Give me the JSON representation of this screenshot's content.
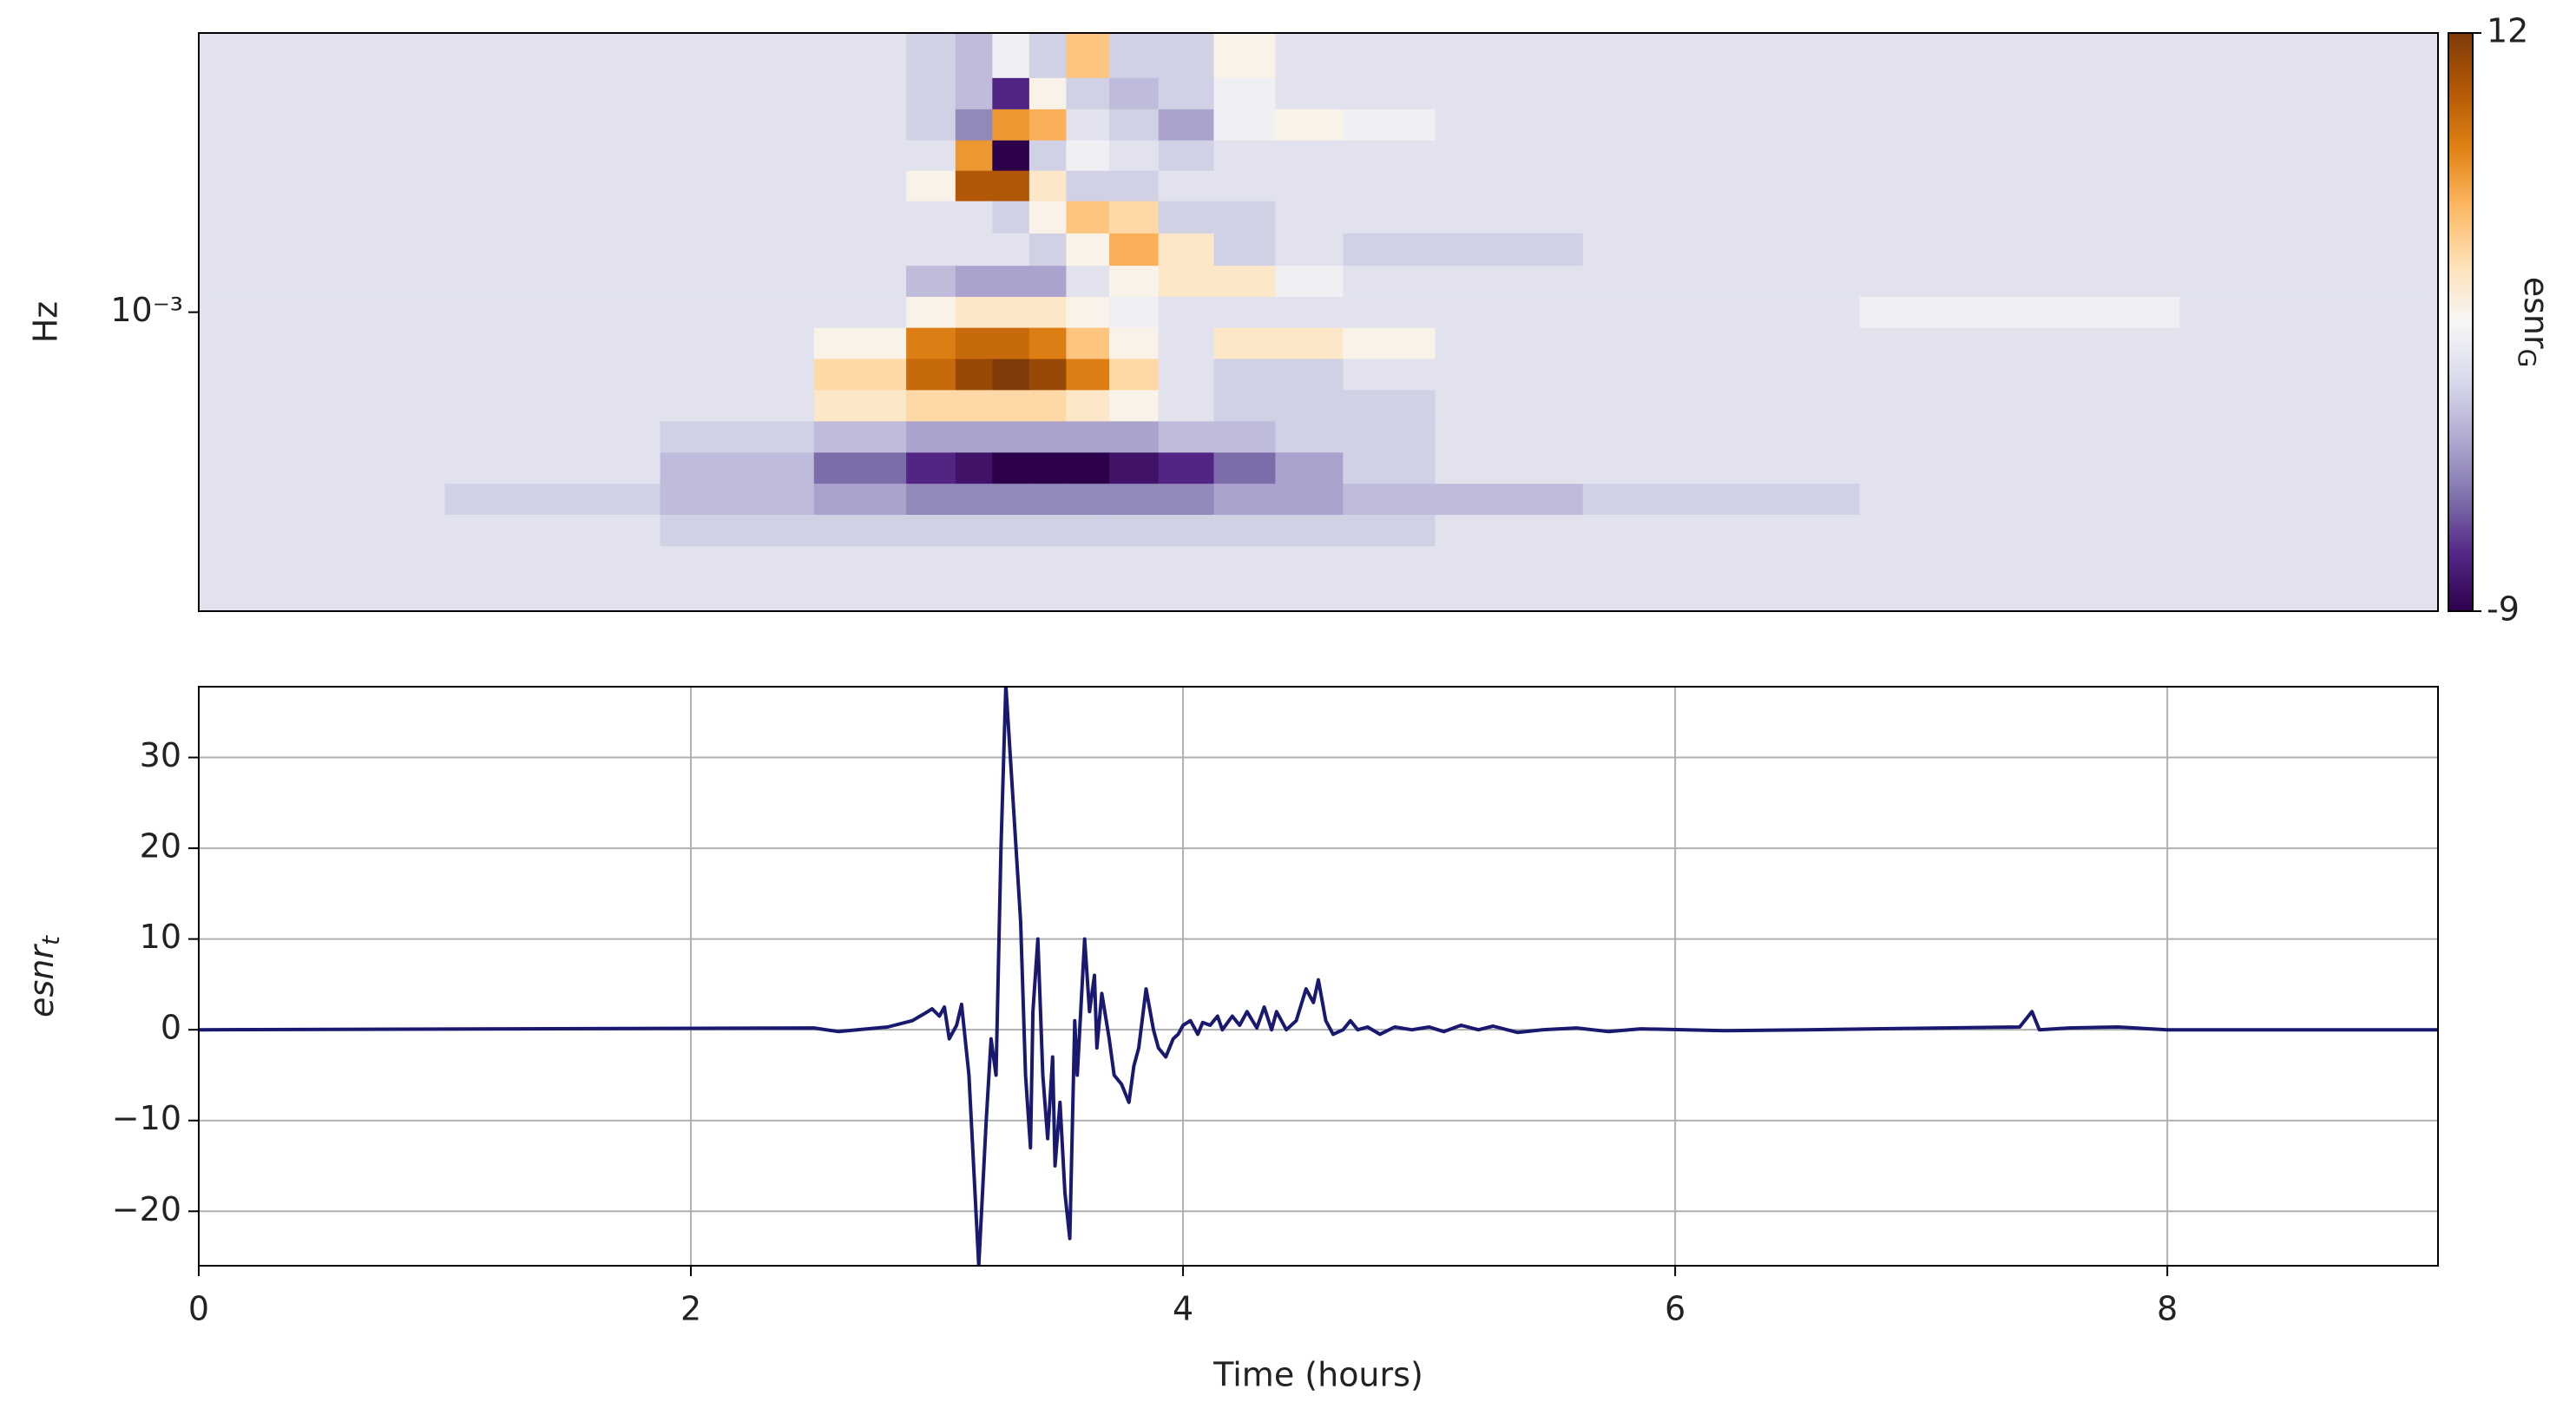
{
  "chart_data": [
    {
      "type": "heatmap",
      "y_label": "Hz",
      "yscale": "log",
      "xlim": [
        0,
        9.1
      ],
      "ylim": [
        0.000114,
        0.0076
      ],
      "yticks": [
        {
          "value": 0.001,
          "label": "10⁻³"
        }
      ],
      "x": [
        0.5,
        1.5,
        2.25,
        2.75,
        3.0,
        3.15,
        3.3,
        3.45,
        3.6,
        3.8,
        4.0,
        4.25,
        4.5,
        4.8,
        5.25,
        6,
        7.5,
        8.6
      ],
      "y": [
        0.00614,
        0.00489,
        0.0039,
        0.00311,
        0.00251,
        0.002,
        0.00157,
        0.00125,
        0.001,
        0.000797,
        0.000636,
        0.000507,
        0.000404,
        0.000322,
        0.000257,
        0.000205,
        0.000163,
        0.00013
      ],
      "values": [
        [
          0,
          0,
          0,
          0,
          -1,
          -2,
          1,
          -1,
          5,
          -1,
          -1,
          2,
          0,
          0,
          0,
          0,
          0,
          0
        ],
        [
          0,
          0,
          0,
          0,
          -1,
          -2,
          -7,
          2,
          -1,
          -2,
          -1,
          1,
          0,
          0,
          0,
          0,
          0,
          0
        ],
        [
          0,
          0,
          0,
          0,
          -1,
          -4,
          7,
          6,
          0,
          -1,
          -3,
          1,
          2,
          1,
          0,
          0,
          0,
          0
        ],
        [
          0,
          0,
          0,
          0,
          0,
          7,
          -9,
          -1,
          1,
          0,
          -1,
          0,
          0,
          0,
          0,
          0,
          0,
          0
        ],
        [
          0,
          0,
          0,
          0,
          2,
          10,
          10,
          3,
          -1,
          -1,
          0,
          0,
          0,
          0,
          0,
          0,
          0,
          0
        ],
        [
          0,
          0,
          0,
          0,
          0,
          0,
          -1,
          2,
          5,
          4,
          -1,
          -1,
          0,
          0,
          0,
          0,
          0,
          0
        ],
        [
          0,
          0,
          0,
          0,
          0,
          0,
          0,
          -1,
          2,
          6,
          3,
          -1,
          0,
          -1,
          -1,
          0,
          0,
          0
        ],
        [
          0,
          0,
          0,
          0,
          -2,
          -3,
          -3,
          -3,
          0,
          2,
          3,
          3,
          1,
          0,
          0,
          0,
          0,
          0
        ],
        [
          0,
          0,
          0,
          0,
          2,
          3,
          3,
          3,
          2,
          1,
          0,
          0,
          0,
          0,
          0,
          0,
          1,
          0
        ],
        [
          0,
          0,
          0,
          2,
          8,
          9,
          9,
          8,
          5,
          2,
          0,
          3,
          3,
          2,
          0,
          0,
          0,
          0
        ],
        [
          0,
          0,
          0,
          4,
          9,
          11,
          12,
          11,
          8,
          4,
          0,
          -1,
          -1,
          0,
          0,
          0,
          0,
          0
        ],
        [
          0,
          0,
          0,
          3,
          4,
          4,
          4,
          4,
          3,
          2,
          0,
          -1,
          -1,
          -1,
          0,
          0,
          0,
          0
        ],
        [
          0,
          0,
          -1,
          -2,
          -3,
          -3,
          -3,
          -3,
          -3,
          -3,
          -2,
          -2,
          -1,
          -1,
          0,
          0,
          0,
          0
        ],
        [
          0,
          0,
          -2,
          -5,
          -7,
          -8,
          -9,
          -9,
          -9,
          -8,
          -7,
          -5,
          -3,
          -1,
          0,
          0,
          0,
          0
        ],
        [
          0,
          -1,
          -2,
          -3,
          -4,
          -4,
          -4,
          -4,
          -4,
          -4,
          -4,
          -3,
          -3,
          -2,
          -2,
          -1,
          0,
          0
        ],
        [
          0,
          0,
          -1,
          -1,
          -1,
          -1,
          -1,
          -1,
          -1,
          -1,
          -1,
          -1,
          -1,
          -1,
          0,
          0,
          0,
          0
        ],
        [
          0,
          0,
          0,
          0,
          0,
          0,
          0,
          0,
          0,
          0,
          0,
          0,
          0,
          0,
          0,
          0,
          0,
          0
        ],
        [
          0,
          0,
          0,
          0,
          0,
          0,
          0,
          0,
          0,
          0,
          0,
          0,
          0,
          0,
          0,
          0,
          0,
          0
        ]
      ],
      "colorbar": {
        "lim": [
          -9,
          12
        ],
        "ticks": [
          -9,
          12
        ],
        "label": "esnr",
        "label_sub": "G",
        "colormap": [
          "#2d004b",
          "#542788",
          "#8073ac",
          "#b2abd2",
          "#d8daeb",
          "#f7f7f7",
          "#fee0b6",
          "#fdb863",
          "#e08214",
          "#b35806",
          "#7f3b08"
        ]
      }
    },
    {
      "type": "line",
      "x_label": "Time (hours)",
      "y_label": "esnr",
      "y_label_sub": "t",
      "color": "#191970",
      "grid": true,
      "xlim": [
        0,
        9.1
      ],
      "ylim": [
        -26,
        37.8
      ],
      "xticks": [
        0,
        2,
        4,
        6,
        8
      ],
      "yticks": [
        {
          "value": -20,
          "label": "−20"
        },
        {
          "value": -10,
          "label": "−10"
        },
        0,
        10,
        20,
        30
      ],
      "x": [
        0,
        2.5,
        2.6,
        2.8,
        2.9,
        2.95,
        2.98,
        3.01,
        3.03,
        3.05,
        3.08,
        3.1,
        3.13,
        3.17,
        3.2,
        3.22,
        3.24,
        3.26,
        3.28,
        3.31,
        3.34,
        3.36,
        3.38,
        3.39,
        3.41,
        3.43,
        3.45,
        3.47,
        3.48,
        3.5,
        3.52,
        3.54,
        3.56,
        3.57,
        3.6,
        3.62,
        3.64,
        3.65,
        3.67,
        3.7,
        3.72,
        3.75,
        3.78,
        3.8,
        3.82,
        3.85,
        3.88,
        3.9,
        3.93,
        3.96,
        3.98,
        4.0,
        4.03,
        4.06,
        4.08,
        4.11,
        4.14,
        4.16,
        4.2,
        4.23,
        4.26,
        4.3,
        4.33,
        4.36,
        4.38,
        4.42,
        4.46,
        4.5,
        4.53,
        4.55,
        4.58,
        4.61,
        4.65,
        4.68,
        4.71,
        4.75,
        4.8,
        4.86,
        4.93,
        5.0,
        5.06,
        5.13,
        5.2,
        5.26,
        5.36,
        5.46,
        5.6,
        5.73,
        5.86,
        6.2,
        6.53,
        7.4,
        7.45,
        7.48,
        7.6,
        7.8,
        8.0,
        9.1
      ],
      "values": [
        0,
        0.2,
        -0.2,
        0.3,
        1,
        1.8,
        2.3,
        1.5,
        2.5,
        -1,
        0.5,
        2.8,
        -5,
        -26,
        -10,
        -1,
        -5,
        20,
        38,
        25,
        12,
        -5,
        -13,
        2,
        10,
        -5,
        -12,
        -3,
        -15,
        -8,
        -18,
        -23,
        1,
        -5,
        10,
        2,
        6,
        -2,
        4,
        -1,
        -5,
        -6,
        -8,
        -4,
        -2,
        4.5,
        0,
        -2,
        -3,
        -1,
        -0.5,
        0.5,
        1,
        -0.5,
        0.8,
        0.5,
        1.5,
        0,
        1.5,
        0.5,
        2,
        0.2,
        2.5,
        0,
        2,
        0,
        1,
        4.5,
        3,
        5.5,
        1,
        -0.5,
        0,
        1,
        0,
        0.3,
        -0.5,
        0.3,
        0,
        0.3,
        -0.2,
        0.5,
        0,
        0.4,
        -0.3,
        0,
        0.2,
        -0.2,
        0.1,
        -0.1,
        0,
        0.3,
        2,
        0,
        0.2,
        0.3,
        0,
        0
      ]
    }
  ]
}
